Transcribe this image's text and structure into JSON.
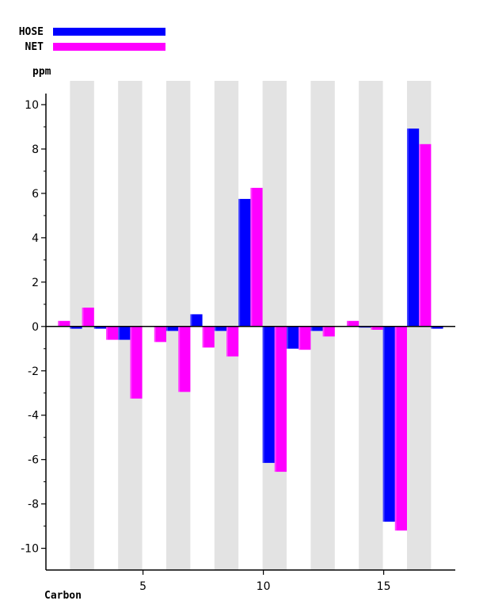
{
  "chart_data": {
    "type": "bar",
    "xlabel": "Carbon",
    "ylabel": "ppm",
    "ylim": [
      -11,
      11
    ],
    "y_ticks": [
      -10,
      -8,
      -6,
      -4,
      -2,
      0,
      2,
      4,
      6,
      8,
      10
    ],
    "x_tick_labels": [
      "5",
      "10",
      "15"
    ],
    "x_tick_positions": [
      5,
      10,
      15
    ],
    "categories": [
      1,
      2,
      3,
      4,
      5,
      6,
      7,
      8,
      9,
      10,
      11,
      12,
      13,
      14,
      15,
      16,
      17
    ],
    "series": [
      {
        "name": "HOSE",
        "color": "#0000ff",
        "values": [
          0,
          -0.1,
          -0.1,
          -0.6,
          0,
          -0.2,
          0.55,
          -0.2,
          5.75,
          -6.15,
          -1.0,
          -0.2,
          0,
          -0.05,
          -8.8,
          8.92,
          -0.1
        ]
      },
      {
        "name": "NET",
        "color": "#ff00ff",
        "values": [
          0.25,
          0.85,
          -0.6,
          -3.25,
          -0.7,
          -2.95,
          -0.95,
          -1.35,
          6.25,
          -6.55,
          -1.05,
          -0.45,
          0.25,
          -0.15,
          -9.2,
          8.22,
          0
        ]
      }
    ],
    "grid": "alternating vertical bands",
    "legend_position": "top-left"
  },
  "legend": {
    "hose_label": "HOSE",
    "net_label": "NET",
    "hose_color": "#0000ff",
    "net_color": "#ff00ff"
  },
  "axes": {
    "x_title": "Carbon",
    "y_title": "ppm"
  }
}
